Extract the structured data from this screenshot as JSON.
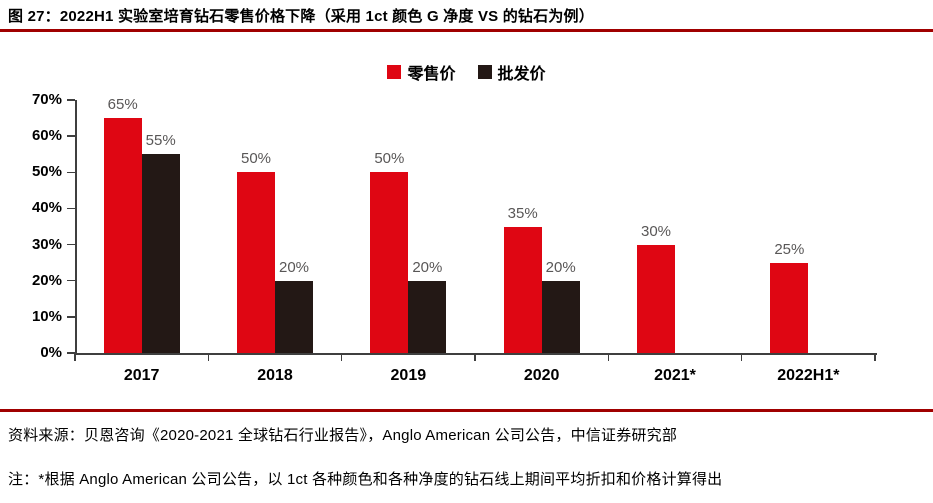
{
  "header": {
    "title": "图 27：2022H1 实验室培育钻石零售价格下降（采用 1ct 颜色 G 净度 VS 的钻石为例）"
  },
  "chart_data": {
    "type": "bar",
    "title": "2022H1 实验室培育钻石零售价格下降",
    "categories": [
      "2017",
      "2018",
      "2019",
      "2020",
      "2021*",
      "2022H1*"
    ],
    "series": [
      {
        "name": "零售价",
        "color": "#df0613",
        "values": [
          65,
          50,
          50,
          35,
          30,
          25
        ]
      },
      {
        "name": "批发价",
        "color": "#231815",
        "values": [
          55,
          20,
          20,
          20,
          null,
          null
        ]
      }
    ],
    "xlabel": "",
    "ylabel": "",
    "ylim": [
      0,
      70
    ],
    "ytick_step": 10,
    "yticks": [
      "0%",
      "10%",
      "20%",
      "30%",
      "40%",
      "50%",
      "60%",
      "70%"
    ],
    "data_labels": [
      [
        "65%",
        "50%",
        "50%",
        "35%",
        "30%",
        "25%"
      ],
      [
        "55%",
        "20%",
        "20%",
        "20%",
        null,
        null
      ]
    ],
    "grid": false,
    "legend_position": "top-center"
  },
  "legend": {
    "items": [
      {
        "label": "零售价",
        "color": "#df0613"
      },
      {
        "label": "批发价",
        "color": "#231815"
      }
    ]
  },
  "footer": {
    "source": "资料来源：贝恩咨询《2020-2021 全球钻石行业报告》，Anglo American 公司公告，中信证券研究部",
    "note": "注：*根据 Anglo American 公司公告，以 1ct 各种颜色和各种净度的钻石线上期间平均折扣和价格计算得出"
  },
  "colors": {
    "retail_red": "#df0613",
    "wholesale_black": "#231815",
    "rule_dark_red": "#a00000",
    "value_label_gray": "#595757",
    "axis_gray": "#3f3f3f"
  }
}
